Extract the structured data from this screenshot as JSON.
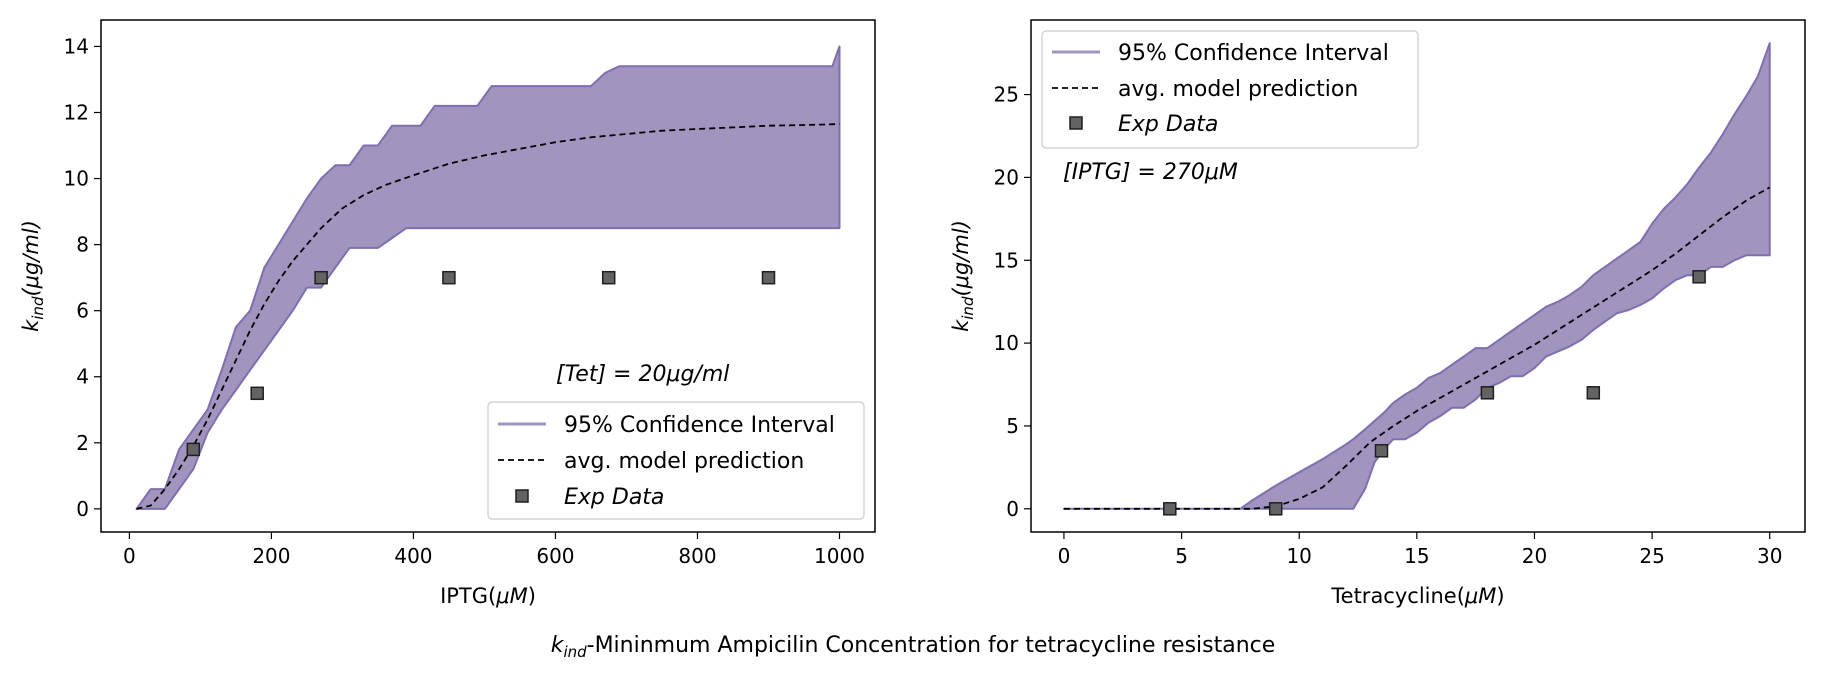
{
  "figure": {
    "suptitle": {
      "sym": "k",
      "sub": "ind",
      "rest": "-Mininmum Ampicilin Concentration for tetracycline resistance"
    }
  },
  "colors": {
    "band_fill": "#a194be",
    "band_edge": "#7e6fae",
    "model_line": "#000000",
    "marker_fill": "#636363",
    "marker_edge": "#1f1f1f"
  },
  "chart_data": [
    {
      "type": "line",
      "xlabel": {
        "text": "IPTG(",
        "unit": "μM",
        "close": ")"
      },
      "ylabel": {
        "sym": "k",
        "sub": "ind",
        "unit": "(μg/ml)"
      },
      "xlim": [
        -40,
        1050
      ],
      "ylim": [
        -0.7,
        14.8
      ],
      "xticks": [
        0,
        200,
        400,
        600,
        800,
        1000
      ],
      "yticks": [
        0,
        2,
        4,
        6,
        8,
        10,
        12,
        14
      ],
      "grid": false,
      "legend": {
        "position": "lower-right",
        "entries": [
          "95% Confidence Interval",
          "avg. model prediction",
          "Exp Data"
        ]
      },
      "annotation": "[Tet] = 20μg/ml",
      "series": [
        {
          "name": "95% Confidence Interval",
          "kind": "band",
          "x": [
            10,
            30,
            50,
            70,
            90,
            110,
            130,
            150,
            170,
            190,
            210,
            230,
            250,
            270,
            290,
            310,
            330,
            350,
            370,
            390,
            410,
            430,
            450,
            470,
            490,
            510,
            530,
            550,
            570,
            590,
            610,
            630,
            650,
            670,
            690,
            710,
            730,
            750,
            770,
            790,
            810,
            830,
            850,
            870,
            890,
            910,
            930,
            950,
            970,
            990,
            1000
          ],
          "upper": [
            0,
            0.6,
            0.6,
            1.8,
            2.4,
            3.0,
            4.2,
            5.5,
            6.0,
            7.3,
            8.0,
            8.7,
            9.4,
            10.0,
            10.4,
            10.4,
            11.0,
            11.0,
            11.6,
            11.6,
            11.6,
            12.2,
            12.2,
            12.2,
            12.2,
            12.8,
            12.8,
            12.8,
            12.8,
            12.8,
            12.8,
            12.8,
            12.8,
            13.2,
            13.4,
            13.4,
            13.4,
            13.4,
            13.4,
            13.4,
            13.4,
            13.4,
            13.4,
            13.4,
            13.4,
            13.4,
            13.4,
            13.4,
            13.4,
            13.4,
            14.0
          ],
          "lower": [
            0,
            0,
            0,
            0.6,
            1.2,
            2.3,
            3.0,
            3.6,
            4.2,
            4.8,
            5.4,
            6.0,
            6.7,
            6.7,
            7.3,
            7.9,
            7.9,
            7.9,
            8.2,
            8.5,
            8.5,
            8.5,
            8.5,
            8.5,
            8.5,
            8.5,
            8.5,
            8.5,
            8.5,
            8.5,
            8.5,
            8.5,
            8.5,
            8.5,
            8.5,
            8.5,
            8.5,
            8.5,
            8.5,
            8.5,
            8.5,
            8.5,
            8.5,
            8.5,
            8.5,
            8.5,
            8.5,
            8.5,
            8.5,
            8.5,
            8.5
          ]
        },
        {
          "name": "avg. model prediction",
          "kind": "dashed-line",
          "x": [
            10,
            30,
            50,
            70,
            90,
            110,
            130,
            150,
            170,
            190,
            210,
            230,
            250,
            270,
            300,
            330,
            360,
            400,
            450,
            500,
            550,
            600,
            650,
            700,
            750,
            800,
            850,
            900,
            950,
            1000
          ],
          "y": [
            0,
            0.1,
            0.6,
            1.2,
            1.9,
            2.7,
            3.6,
            4.5,
            5.4,
            6.2,
            6.9,
            7.5,
            8.0,
            8.5,
            9.1,
            9.5,
            9.8,
            10.1,
            10.45,
            10.7,
            10.9,
            11.1,
            11.25,
            11.35,
            11.45,
            11.5,
            11.55,
            11.6,
            11.62,
            11.65
          ]
        },
        {
          "name": "Exp Data",
          "kind": "markers",
          "x": [
            90,
            180,
            270,
            450,
            675,
            900
          ],
          "y": [
            1.8,
            3.5,
            7.0,
            7.0,
            7.0,
            7.0
          ]
        }
      ]
    },
    {
      "type": "line",
      "xlabel": {
        "text": "Tetracycline(",
        "unit": "μM",
        "close": ")"
      },
      "ylabel": {
        "sym": "k",
        "sub": "ind",
        "unit": "(μg/ml)"
      },
      "xlim": [
        -1.4,
        31.5
      ],
      "ylim": [
        -1.4,
        29.5
      ],
      "xticks": [
        0,
        5,
        10,
        15,
        20,
        25,
        30
      ],
      "yticks": [
        0,
        5,
        10,
        15,
        20,
        25
      ],
      "grid": false,
      "legend": {
        "position": "upper-left",
        "entries": [
          "95% Confidence Interval",
          "avg. model prediction",
          "Exp Data"
        ]
      },
      "annotation": "[IPTG] = 270μM",
      "series": [
        {
          "name": "95% Confidence Interval",
          "kind": "band",
          "x": [
            0,
            7.5,
            8,
            9,
            10,
            11,
            12,
            12.3,
            12.8,
            13.2,
            13.6,
            14,
            14.5,
            15,
            15.5,
            16,
            16.5,
            17,
            17.5,
            18,
            18.5,
            19,
            19.5,
            20,
            20.5,
            21,
            21.5,
            22,
            22.5,
            23,
            23.5,
            24,
            24.5,
            25,
            25.5,
            26,
            26.5,
            27,
            27.5,
            28,
            28.5,
            29,
            29.5,
            30
          ],
          "upper": [
            0,
            0,
            0.5,
            1.4,
            2.2,
            3.0,
            3.9,
            4.2,
            4.8,
            5.3,
            5.8,
            6.4,
            6.9,
            7.3,
            7.9,
            8.2,
            8.7,
            9.2,
            9.7,
            9.7,
            10.2,
            10.7,
            11.2,
            11.7,
            12.2,
            12.5,
            12.9,
            13.4,
            14.1,
            14.6,
            15.1,
            15.6,
            16.1,
            17.2,
            18.1,
            18.8,
            19.6,
            20.6,
            21.5,
            22.6,
            23.8,
            24.9,
            26.1,
            28.1
          ],
          "lower": [
            0,
            0,
            0,
            0,
            0,
            0,
            0,
            0,
            1.2,
            2.8,
            3.6,
            4.2,
            4.2,
            4.6,
            5.2,
            5.6,
            6.1,
            6.1,
            6.6,
            7.3,
            7.6,
            8.0,
            8.0,
            8.5,
            9.2,
            9.5,
            9.8,
            10.2,
            10.8,
            11.3,
            11.8,
            12.0,
            12.3,
            12.7,
            13.3,
            13.8,
            14.1,
            14.1,
            14.6,
            14.6,
            15.0,
            15.3,
            15.3,
            15.3
          ]
        },
        {
          "name": "avg. model prediction",
          "kind": "dashed-line",
          "x": [
            0,
            8,
            9,
            10,
            11,
            12,
            13,
            14,
            15,
            16,
            17,
            18,
            19,
            20,
            21,
            22,
            23,
            24,
            25,
            26,
            27,
            28,
            29,
            30
          ],
          "y": [
            0,
            0,
            0.15,
            0.6,
            1.3,
            2.6,
            4.0,
            5.0,
            5.9,
            6.7,
            7.5,
            8.3,
            9.1,
            9.9,
            10.8,
            11.7,
            12.6,
            13.5,
            14.4,
            15.4,
            16.5,
            17.6,
            18.6,
            19.4
          ]
        },
        {
          "name": "Exp Data",
          "kind": "markers",
          "x": [
            4.5,
            9,
            13.5,
            18,
            22.5,
            27
          ],
          "y": [
            0,
            0,
            3.5,
            7.0,
            7.0,
            14.0
          ]
        }
      ]
    }
  ]
}
